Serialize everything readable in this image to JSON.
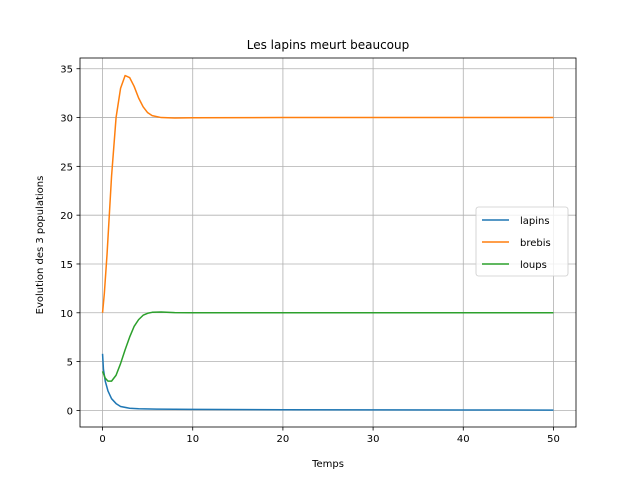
{
  "chart_data": {
    "type": "line",
    "title": "Les lapins meurt beaucoup",
    "xlabel": "Temps",
    "ylabel": "Evolution des 3 populations",
    "xlim": [
      -2.5,
      52.5
    ],
    "ylim": [
      -1.7,
      36.1
    ],
    "xticks": [
      0,
      10,
      20,
      30,
      40,
      50
    ],
    "yticks": [
      0,
      5,
      10,
      15,
      20,
      25,
      30,
      35
    ],
    "grid": true,
    "legend_position": "center-right",
    "series": [
      {
        "name": "lapins",
        "color": "#1f77b4",
        "points": [
          [
            0,
            5.8
          ],
          [
            0.1,
            4.2
          ],
          [
            0.3,
            3.0
          ],
          [
            0.6,
            2.0
          ],
          [
            1.0,
            1.2
          ],
          [
            1.5,
            0.7
          ],
          [
            2.0,
            0.4
          ],
          [
            3.0,
            0.22
          ],
          [
            4.0,
            0.17
          ],
          [
            6.0,
            0.13
          ],
          [
            10,
            0.1
          ],
          [
            20,
            0.07
          ],
          [
            30,
            0.05
          ],
          [
            40,
            0.04
          ],
          [
            50,
            0.03
          ]
        ]
      },
      {
        "name": "brebis",
        "color": "#ff7f0e",
        "points": [
          [
            0,
            10.0
          ],
          [
            0.2,
            12.0
          ],
          [
            0.5,
            16.0
          ],
          [
            1.0,
            24.0
          ],
          [
            1.5,
            30.0
          ],
          [
            2.0,
            33.0
          ],
          [
            2.5,
            34.3
          ],
          [
            3.0,
            34.1
          ],
          [
            3.5,
            33.2
          ],
          [
            4.0,
            32.0
          ],
          [
            4.5,
            31.1
          ],
          [
            5.0,
            30.5
          ],
          [
            5.5,
            30.2
          ],
          [
            6.5,
            30.0
          ],
          [
            8,
            29.95
          ],
          [
            10,
            29.98
          ],
          [
            20,
            30.0
          ],
          [
            30,
            30.0
          ],
          [
            40,
            30.0
          ],
          [
            50,
            30.0
          ]
        ]
      },
      {
        "name": "loups",
        "color": "#2ca02c",
        "points": [
          [
            0,
            4.0
          ],
          [
            0.3,
            3.3
          ],
          [
            0.6,
            3.0
          ],
          [
            1.0,
            3.0
          ],
          [
            1.5,
            3.6
          ],
          [
            2.0,
            4.8
          ],
          [
            2.5,
            6.2
          ],
          [
            3.0,
            7.5
          ],
          [
            3.5,
            8.6
          ],
          [
            4.0,
            9.3
          ],
          [
            4.5,
            9.75
          ],
          [
            5.0,
            9.95
          ],
          [
            5.5,
            10.05
          ],
          [
            6.5,
            10.08
          ],
          [
            8,
            10.02
          ],
          [
            10,
            10.0
          ],
          [
            20,
            10.0
          ],
          [
            30,
            10.0
          ],
          [
            40,
            10.0
          ],
          [
            50,
            10.0
          ]
        ]
      }
    ]
  }
}
